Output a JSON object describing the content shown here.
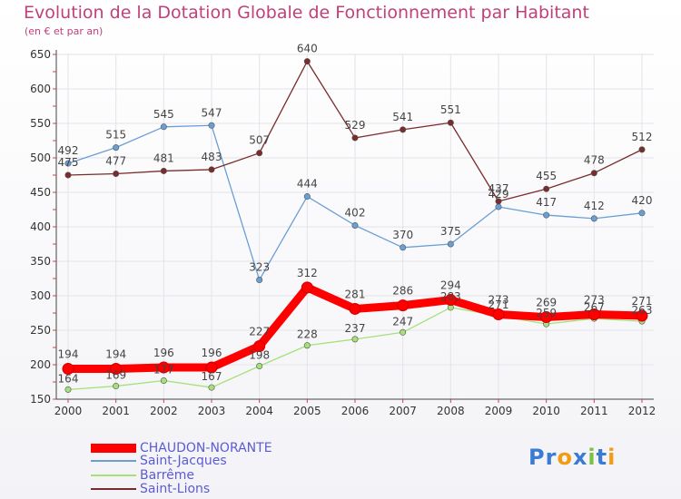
{
  "chart_data": {
    "type": "line",
    "title": "Evolution de la Dotation Globale de Fonctionnement par Habitant",
    "subtitle": "(en € et par an)",
    "xlabel": "",
    "ylabel": "",
    "categories": [
      "2000",
      "2001",
      "2002",
      "2003",
      "2004",
      "2005",
      "2006",
      "2007",
      "2008",
      "2009",
      "2010",
      "2011",
      "2012"
    ],
    "ylim": [
      150,
      650
    ],
    "yticks": [
      150,
      200,
      250,
      300,
      350,
      400,
      450,
      500,
      550,
      600,
      650
    ],
    "series": [
      {
        "name": "CHAUDON-NORANTE",
        "color": "#ff0000",
        "values": [
          194,
          194,
          196,
          196,
          227,
          312,
          281,
          286,
          294,
          273,
          269,
          273,
          271
        ]
      },
      {
        "name": "Saint-Jacques",
        "color": "#6a9fd4",
        "values": [
          492,
          515,
          545,
          547,
          323,
          444,
          402,
          370,
          375,
          429,
          417,
          412,
          420
        ]
      },
      {
        "name": "Barrême",
        "color": "#a6e07a",
        "values": [
          164,
          169,
          177,
          167,
          198,
          228,
          237,
          247,
          283,
          271,
          259,
          267,
          263
        ]
      },
      {
        "name": "Saint-Lions",
        "color": "#7a2b2b",
        "values": [
          475,
          477,
          481,
          483,
          507,
          640,
          529,
          541,
          551,
          437,
          455,
          478,
          512
        ]
      }
    ]
  },
  "logo": {
    "text": "Proxiti",
    "letters": [
      "P",
      "r",
      "o",
      "x",
      "i",
      "t",
      "i"
    ],
    "colors": [
      "#3a7bd5",
      "#3a7bd5",
      "#f39c12",
      "#3a7bd5",
      "#7ac142",
      "#3a7bd5",
      "#f39c12"
    ]
  }
}
